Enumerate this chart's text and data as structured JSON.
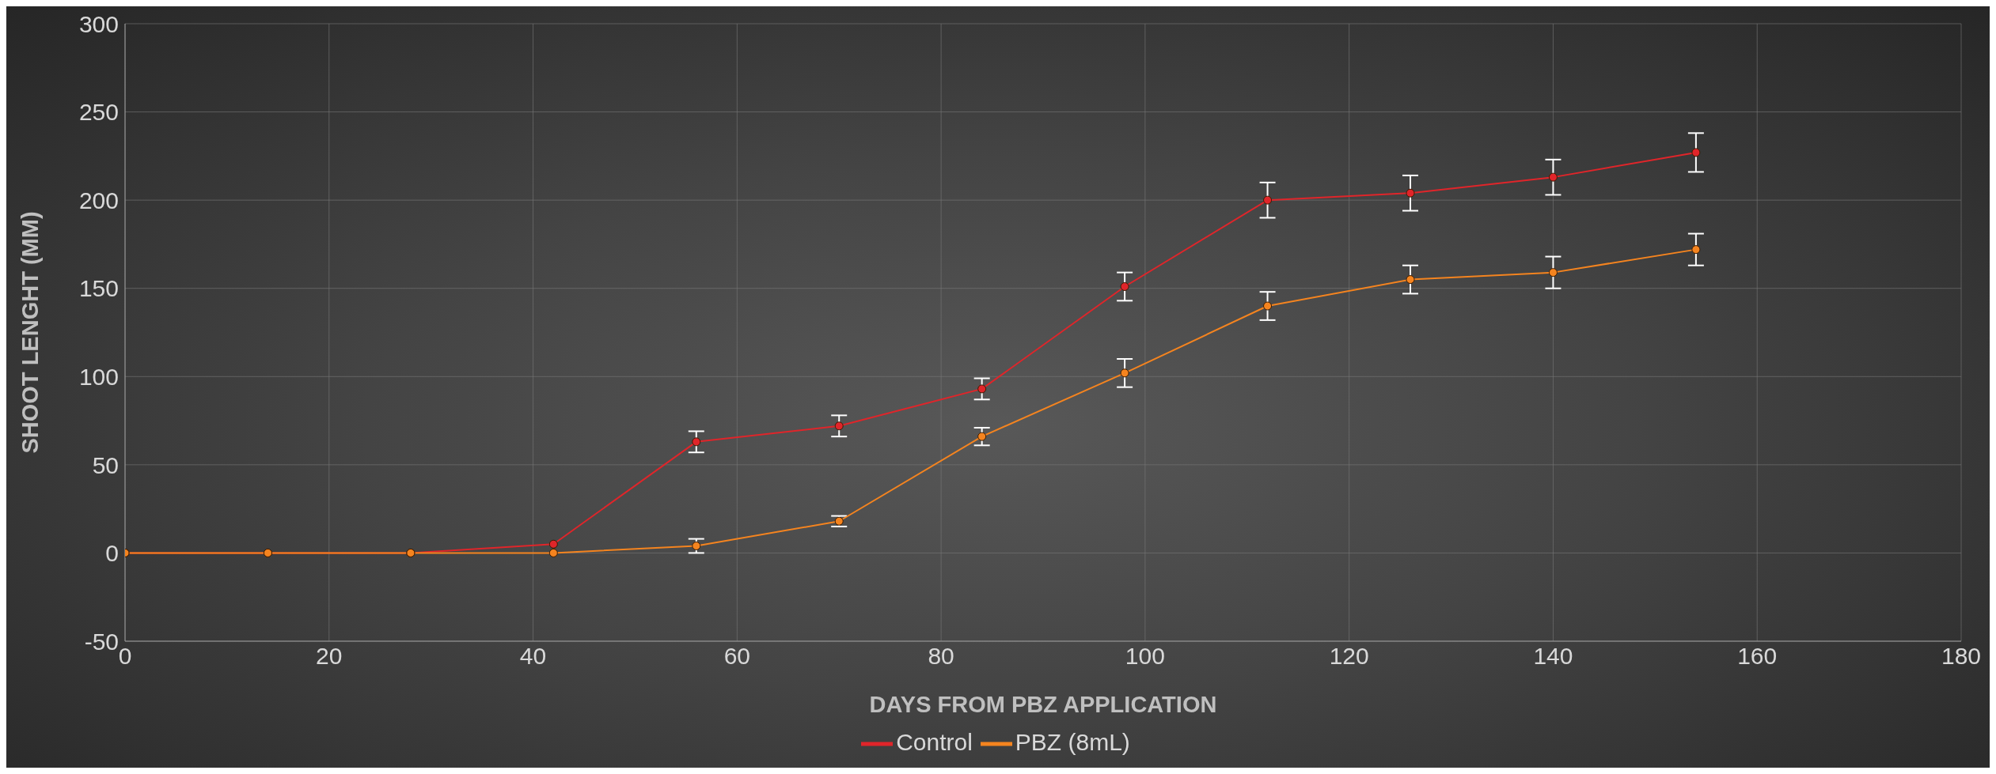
{
  "chart_data": {
    "type": "line",
    "xlabel": "DAYS FROM PBZ APPLICATION",
    "ylabel": "SHOOT LENGHT (MM)",
    "x": [
      0,
      14,
      28,
      42,
      56,
      70,
      84,
      98,
      112,
      126,
      140,
      154
    ],
    "series": [
      {
        "name": "Control",
        "color": "#e0252a",
        "values": [
          0,
          0,
          0,
          5,
          63,
          72,
          93,
          151,
          200,
          204,
          213,
          227
        ],
        "errors": [
          null,
          null,
          null,
          null,
          6,
          6,
          6,
          8,
          10,
          10,
          10,
          11
        ]
      },
      {
        "name": "PBZ (8mL)",
        "color": "#f5841f",
        "values": [
          0,
          0,
          0,
          0,
          4,
          18,
          66,
          102,
          140,
          155,
          159,
          172
        ],
        "errors": [
          null,
          null,
          null,
          null,
          4,
          3,
          5,
          8,
          8,
          8,
          9,
          9
        ]
      }
    ],
    "xlim": [
      0,
      180
    ],
    "xticks": [
      0,
      20,
      40,
      60,
      80,
      100,
      120,
      140,
      160,
      180
    ],
    "ylim": [
      -50,
      300
    ],
    "yticks": [
      -50,
      0,
      50,
      100,
      150,
      200,
      250,
      300
    ],
    "grid": true,
    "legend": "bottom",
    "marker": "circle",
    "line_style": "solid"
  }
}
